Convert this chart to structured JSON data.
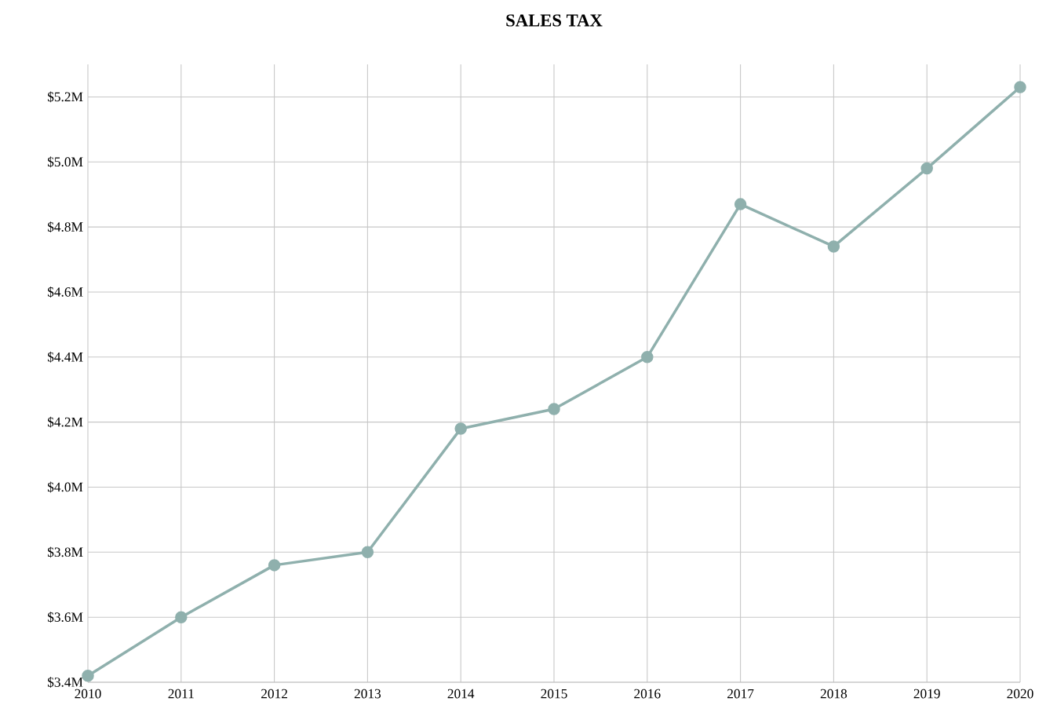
{
  "chart_data": {
    "type": "line",
    "title": "SALES TAX",
    "x": [
      2010,
      2011,
      2012,
      2013,
      2014,
      2015,
      2016,
      2017,
      2018,
      2019,
      2020
    ],
    "series": [
      {
        "color": "#8fb0ad",
        "values": [
          3.42,
          3.6,
          3.76,
          3.8,
          4.18,
          4.24,
          4.4,
          4.87,
          4.74,
          4.98,
          5.23
        ]
      }
    ],
    "xlim": [
      2010,
      2020
    ],
    "xticks": [
      2010,
      2011,
      2012,
      2013,
      2014,
      2015,
      2016,
      2017,
      2018,
      2019,
      2020
    ],
    "ylim": [
      3.4,
      5.3
    ],
    "yticks": [
      {
        "value": 3.4,
        "label": "$3.4M"
      },
      {
        "value": 3.6,
        "label": "$3.6M"
      },
      {
        "value": 3.8,
        "label": "$3.8M"
      },
      {
        "value": 4.0,
        "label": "$4.0M"
      },
      {
        "value": 4.2,
        "label": "$4.2M"
      },
      {
        "value": 4.4,
        "label": "$4.4M"
      },
      {
        "value": 4.6,
        "label": "$4.6M"
      },
      {
        "value": 4.8,
        "label": "$4.8M"
      },
      {
        "value": 5.0,
        "label": "$5.0M"
      },
      {
        "value": 5.2,
        "label": "$5.2M"
      }
    ],
    "grid": true,
    "marker": "circle",
    "line_style": "solid"
  }
}
